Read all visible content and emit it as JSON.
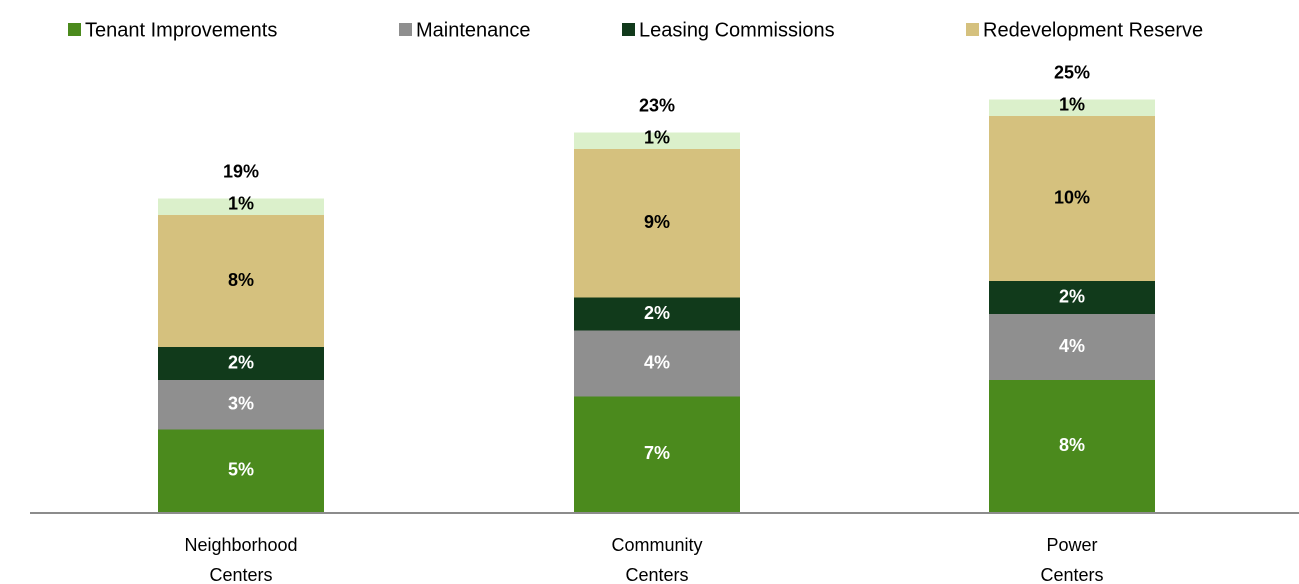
{
  "chart_data": {
    "type": "stacked_bar",
    "categories": [
      [
        "Neighborhood",
        "Centers"
      ],
      [
        "Community",
        "Centers"
      ],
      [
        "Power",
        "Centers"
      ]
    ],
    "series": [
      {
        "name": "Tenant Improvements",
        "color": "#4b8a1d",
        "values": [
          5,
          7,
          8
        ],
        "value_labels": [
          "5%",
          "7%",
          "8%"
        ]
      },
      {
        "name": "Maintenance",
        "color": "#8f8f8f",
        "values": [
          3,
          4,
          4
        ],
        "value_labels": [
          "3%",
          "4%",
          "4%"
        ]
      },
      {
        "name": "Leasing Commissions",
        "color": "#113a1b",
        "values": [
          2,
          2,
          2
        ],
        "value_labels": [
          "2%",
          "2%",
          "2%"
        ]
      },
      {
        "name": "Redevelopment Reserve",
        "color": "#d5c17e",
        "values": [
          8,
          9,
          10
        ],
        "value_labels": [
          "8%",
          "9%",
          "10%"
        ]
      },
      {
        "color": "#dbf0cb",
        "values": [
          1,
          1,
          1
        ],
        "value_labels": [
          "1%",
          "1%",
          "1%"
        ]
      }
    ],
    "totals": [
      19,
      23,
      25
    ],
    "total_labels": [
      "19%",
      "23%",
      "25%"
    ],
    "legend": "top"
  }
}
